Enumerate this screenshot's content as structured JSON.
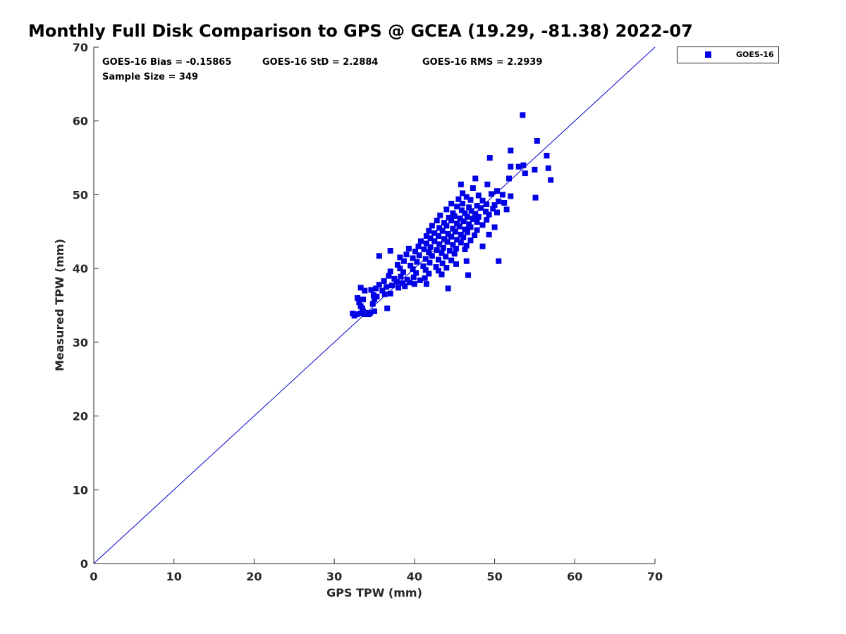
{
  "colors": {
    "series": "#0000e6",
    "identity_line": "#0000cc",
    "axis": "#262626"
  },
  "chart_data": {
    "type": "scatter",
    "title": "Monthly Full Disk Comparison to GPS @ GCEA (19.29, -81.38) 2022-07",
    "xlabel": "GPS TPW (mm)",
    "ylabel": "Measured TPW (mm)",
    "xlim": [
      0,
      70
    ],
    "ylim": [
      0,
      70
    ],
    "xticks": [
      "0",
      "10",
      "20",
      "30",
      "40",
      "50",
      "60",
      "70"
    ],
    "yticks": [
      "0",
      "10",
      "20",
      "30",
      "40",
      "50",
      "60",
      "70"
    ],
    "grid": false,
    "legend_position": "top-right",
    "stats": {
      "bias": "GOES-16 Bias = -0.15865",
      "std": "GOES-16 StD = 2.2884",
      "rms": "GOES-16 RMS = 2.2939",
      "sample_size": "Sample Size = 349"
    },
    "reference_line": {
      "type": "identity",
      "from": [
        0,
        0
      ],
      "to": [
        70,
        70
      ]
    },
    "series": [
      {
        "name": "GOES-16",
        "marker": "square",
        "points": [
          [
            53.5,
            60.8
          ],
          [
            55.3,
            57.3
          ],
          [
            52,
            56
          ],
          [
            56.5,
            55.3
          ],
          [
            49.4,
            55
          ],
          [
            53.6,
            54
          ],
          [
            53.0,
            53.8
          ],
          [
            52.0,
            53.8
          ],
          [
            55.0,
            53.4
          ],
          [
            56.7,
            53.6
          ],
          [
            53.8,
            52.9
          ],
          [
            51.8,
            52.2
          ],
          [
            57.0,
            52.0
          ],
          [
            47.6,
            52.2
          ],
          [
            45.8,
            51.4
          ],
          [
            49.1,
            51.4
          ],
          [
            47.3,
            50.9
          ],
          [
            50.3,
            50.5
          ],
          [
            46.0,
            50.2
          ],
          [
            51.0,
            50.0
          ],
          [
            49.6,
            50.1
          ],
          [
            48.0,
            49.9
          ],
          [
            46.5,
            49.7
          ],
          [
            52.0,
            49.8
          ],
          [
            55.1,
            49.6
          ],
          [
            45.5,
            49.4
          ],
          [
            47.0,
            49.3
          ],
          [
            48.5,
            49.2
          ],
          [
            50.5,
            49.1
          ],
          [
            51.2,
            48.9
          ],
          [
            44.6,
            48.8
          ],
          [
            46.0,
            48.8
          ],
          [
            49.0,
            48.7
          ],
          [
            50.0,
            48.6
          ],
          [
            47.8,
            48.5
          ],
          [
            45.3,
            48.4
          ],
          [
            46.8,
            48.3
          ],
          [
            48.3,
            48.2
          ],
          [
            49.8,
            48.1
          ],
          [
            51.5,
            48.0
          ],
          [
            44.0,
            48.0
          ],
          [
            45.9,
            47.9
          ],
          [
            47.1,
            47.8
          ],
          [
            48.9,
            47.7
          ],
          [
            50.3,
            47.6
          ],
          [
            44.8,
            47.5
          ],
          [
            46.3,
            47.5
          ],
          [
            47.6,
            47.4
          ],
          [
            49.3,
            47.3
          ],
          [
            43.2,
            47.2
          ],
          [
            45.0,
            47.1
          ],
          [
            46.6,
            47.0
          ],
          [
            48.0,
            47.0
          ],
          [
            44.3,
            46.9
          ],
          [
            45.7,
            46.8
          ],
          [
            47.3,
            46.7
          ],
          [
            49.0,
            46.6
          ],
          [
            42.8,
            46.5
          ],
          [
            44.6,
            46.5
          ],
          [
            46.1,
            46.4
          ],
          [
            47.8,
            46.3
          ],
          [
            43.7,
            46.2
          ],
          [
            45.3,
            46.1
          ],
          [
            46.8,
            46.0
          ],
          [
            48.5,
            45.9
          ],
          [
            42.2,
            45.8
          ],
          [
            44.0,
            45.8
          ],
          [
            45.6,
            45.7
          ],
          [
            47.0,
            45.6
          ],
          [
            50.0,
            45.6
          ],
          [
            43.1,
            45.5
          ],
          [
            44.8,
            45.4
          ],
          [
            46.3,
            45.3
          ],
          [
            47.8,
            45.2
          ],
          [
            41.8,
            45.1
          ],
          [
            43.5,
            45.1
          ],
          [
            45.1,
            45.0
          ],
          [
            46.6,
            44.9
          ],
          [
            42.5,
            44.8
          ],
          [
            44.2,
            44.7
          ],
          [
            45.8,
            44.6
          ],
          [
            47.5,
            44.5
          ],
          [
            49.3,
            44.6
          ],
          [
            41.5,
            44.4
          ],
          [
            43.0,
            44.4
          ],
          [
            44.6,
            44.3
          ],
          [
            46.1,
            44.2
          ],
          [
            42.0,
            44.1
          ],
          [
            43.7,
            44.0
          ],
          [
            45.3,
            43.9
          ],
          [
            47.0,
            43.8
          ],
          [
            40.8,
            43.7
          ],
          [
            42.5,
            43.7
          ],
          [
            44.1,
            43.6
          ],
          [
            45.8,
            43.5
          ],
          [
            41.5,
            43.4
          ],
          [
            43.1,
            43.3
          ],
          [
            44.8,
            43.2
          ],
          [
            46.5,
            43.1
          ],
          [
            48.5,
            43.0
          ],
          [
            40.5,
            43.0
          ],
          [
            42.0,
            42.9
          ],
          [
            43.6,
            42.8
          ],
          [
            45.2,
            42.7
          ],
          [
            39.3,
            42.7
          ],
          [
            41.2,
            42.6
          ],
          [
            42.8,
            42.5
          ],
          [
            44.4,
            42.4
          ],
          [
            46.3,
            42.6
          ],
          [
            37.0,
            42.4
          ],
          [
            40.1,
            42.3
          ],
          [
            41.8,
            42.2
          ],
          [
            43.4,
            42.1
          ],
          [
            45.0,
            42.0
          ],
          [
            39.0,
            41.9
          ],
          [
            40.6,
            41.8
          ],
          [
            42.2,
            41.7
          ],
          [
            43.9,
            41.6
          ],
          [
            35.6,
            41.7
          ],
          [
            38.2,
            41.5
          ],
          [
            39.8,
            41.4
          ],
          [
            41.4,
            41.3
          ],
          [
            43.0,
            41.2
          ],
          [
            44.6,
            41.1
          ],
          [
            46.5,
            41.0
          ],
          [
            50.5,
            41.0
          ],
          [
            38.7,
            41.0
          ],
          [
            40.3,
            40.9
          ],
          [
            41.9,
            40.8
          ],
          [
            43.5,
            40.7
          ],
          [
            45.2,
            40.6
          ],
          [
            37.9,
            40.5
          ],
          [
            39.5,
            40.4
          ],
          [
            41.1,
            40.3
          ],
          [
            42.7,
            40.2
          ],
          [
            44.0,
            40.1
          ],
          [
            38.2,
            40.0
          ],
          [
            39.8,
            39.9
          ],
          [
            41.4,
            39.8
          ],
          [
            43.0,
            39.7
          ],
          [
            37.0,
            39.6
          ],
          [
            38.6,
            39.5
          ],
          [
            40.2,
            39.4
          ],
          [
            41.8,
            39.3
          ],
          [
            43.4,
            39.2
          ],
          [
            46.7,
            39.1
          ],
          [
            36.8,
            39.0
          ],
          [
            38.3,
            38.9
          ],
          [
            39.9,
            38.8
          ],
          [
            41.3,
            38.7
          ],
          [
            37.5,
            38.6
          ],
          [
            39.1,
            38.5
          ],
          [
            40.7,
            38.4
          ],
          [
            36.2,
            38.3
          ],
          [
            37.8,
            38.2
          ],
          [
            39.4,
            38.1
          ],
          [
            38.5,
            38.0
          ],
          [
            40.0,
            37.9
          ],
          [
            41.5,
            37.9
          ],
          [
            35.6,
            37.8
          ],
          [
            37.2,
            37.7
          ],
          [
            38.8,
            37.6
          ],
          [
            36.5,
            37.5
          ],
          [
            38.0,
            37.4
          ],
          [
            33.3,
            37.4
          ],
          [
            35.2,
            37.3
          ],
          [
            34.6,
            37.1
          ],
          [
            33.8,
            37.0
          ],
          [
            36.0,
            37.0
          ],
          [
            44.2,
            37.3
          ],
          [
            37.0,
            36.6
          ],
          [
            34.9,
            36.4
          ],
          [
            36.3,
            36.5
          ],
          [
            35.3,
            36.2
          ],
          [
            32.9,
            36.0
          ],
          [
            33.6,
            35.8
          ],
          [
            35.0,
            35.8
          ],
          [
            33.1,
            35.4
          ],
          [
            34.8,
            35.2
          ],
          [
            33.3,
            34.9
          ],
          [
            33.5,
            34.6
          ],
          [
            36.6,
            34.6
          ],
          [
            33.6,
            34.2
          ],
          [
            35.0,
            34.2
          ],
          [
            32.3,
            33.9
          ],
          [
            32.8,
            33.8
          ],
          [
            33.3,
            33.9
          ],
          [
            33.8,
            33.8
          ],
          [
            34.3,
            33.8
          ],
          [
            32.5,
            33.6
          ],
          [
            33.9,
            34.0
          ],
          [
            34.5,
            34.0
          ]
        ]
      }
    ]
  }
}
